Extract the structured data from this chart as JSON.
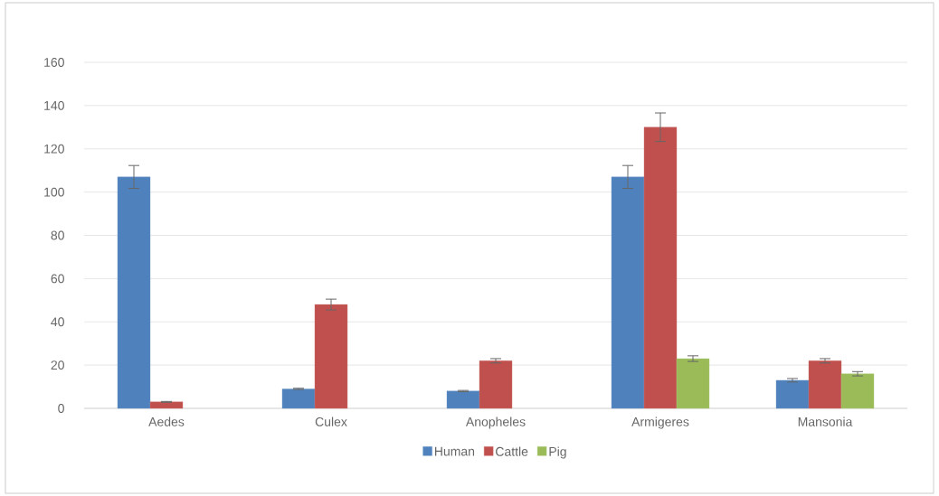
{
  "chart_data": {
    "type": "bar",
    "categories": [
      "Aedes",
      "Culex",
      "Anopheles",
      "Armigeres",
      "Mansonia"
    ],
    "series": [
      {
        "name": "Human",
        "color": "#4f81bd",
        "values": [
          107,
          9,
          8,
          107,
          13
        ],
        "errors": [
          5.3,
          0.3,
          0.3,
          5.3,
          0.8
        ]
      },
      {
        "name": "Cattle",
        "color": "#c0504d",
        "values": [
          3,
          48,
          22,
          130,
          22
        ],
        "errors": [
          0.2,
          2.5,
          1,
          6.6,
          1
        ]
      },
      {
        "name": "Pig",
        "color": "#9bbb59",
        "values": [
          null,
          null,
          null,
          23,
          16
        ],
        "errors": [
          null,
          null,
          null,
          1.3,
          1
        ]
      }
    ],
    "ylim": [
      0,
      160
    ],
    "yticks": [
      0,
      20,
      40,
      60,
      80,
      100,
      120,
      140,
      160
    ],
    "grid": "y",
    "legend": "bottom"
  }
}
